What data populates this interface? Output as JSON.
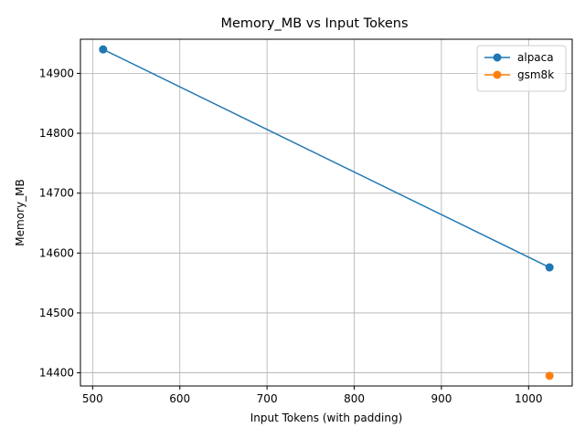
{
  "chart_data": {
    "type": "line",
    "title": "Memory_MB vs Input Tokens",
    "xlabel": "Input Tokens (with padding)",
    "ylabel": "Memory_MB",
    "xlim": [
      486,
      1050
    ],
    "ylim": [
      14378,
      14957
    ],
    "xticks": [
      500,
      600,
      700,
      800,
      900,
      1000
    ],
    "xtick_labels": [
      "500",
      "600",
      "700",
      "800",
      "900",
      "1000"
    ],
    "yticks": [
      14400,
      14500,
      14600,
      14700,
      14800,
      14900
    ],
    "ytick_labels": [
      "14400",
      "14500",
      "14600",
      "14700",
      "14800",
      "14900"
    ],
    "grid": true,
    "legend_position": "top-right",
    "series": [
      {
        "name": "alpaca",
        "color": "#1f77b4",
        "marker": "circle",
        "x": [
          512,
          1024
        ],
        "y": [
          14940,
          14576
        ]
      },
      {
        "name": "gsm8k",
        "color": "#ff7f0e",
        "marker": "circle",
        "x": [
          1024
        ],
        "y": [
          14395
        ]
      }
    ]
  }
}
